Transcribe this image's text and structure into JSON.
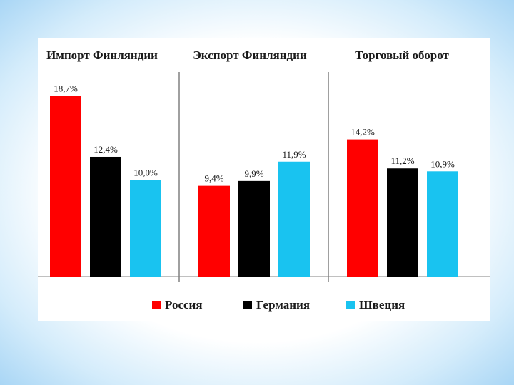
{
  "colors": {
    "Россия": "#ff0000",
    "Германия": "#000000",
    "Швеция": "#19c3f0",
    "axis": "#808080"
  },
  "chart_data": {
    "type": "bar",
    "categories": [
      "Импорт Финляндии",
      "Экспорт Финляндии",
      "Торговый оборот"
    ],
    "series": [
      {
        "name": "Россия",
        "values": [
          18.7,
          9.4,
          14.2
        ],
        "labels": [
          "18,7%",
          "9,4%",
          "14,2%"
        ]
      },
      {
        "name": "Германия",
        "values": [
          12.4,
          9.9,
          11.2
        ],
        "labels": [
          "12,4%",
          "9,9%",
          "11,2%"
        ]
      },
      {
        "name": "Швеция",
        "values": [
          10.0,
          11.9,
          10.9
        ],
        "labels": [
          "10,0%",
          "11,9%",
          "10,9%"
        ]
      }
    ],
    "title": "",
    "xlabel": "",
    "ylabel": "",
    "ylim": [
      0,
      20
    ],
    "grid": false,
    "legend": "bottom"
  }
}
